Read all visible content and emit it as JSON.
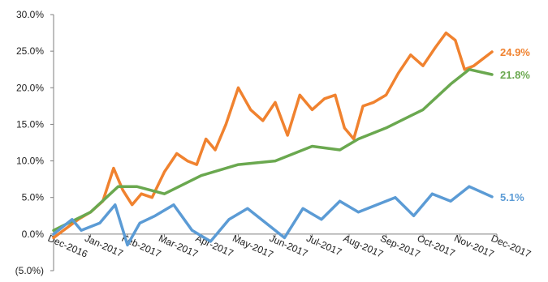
{
  "chart_data": {
    "type": "line",
    "title": "",
    "xlabel": "",
    "ylabel": "",
    "ylim": [
      -5,
      30
    ],
    "yticks": [
      "30.0%",
      "25.0%",
      "20.0%",
      "15.0%",
      "10.0%",
      "5.0%",
      "0.0%",
      "(5.0%)"
    ],
    "ytick_values": [
      30,
      25,
      20,
      15,
      10,
      5,
      0,
      -5
    ],
    "xticks": [
      "Dec-2016",
      "Jan-2017",
      "Feb-2017",
      "Mar-2017",
      "Apr-2017",
      "May-2017",
      "Jun-2017",
      "Jul-2017",
      "Aug-2017",
      "Sep-2017",
      "Oct-2017",
      "Nov-2017",
      "Dec-2017"
    ],
    "grid": false,
    "legend": "none",
    "series": [
      {
        "color": "#f0822f",
        "end_label": "24.9%",
        "x": [
          "Dec-2016",
          "Jan-2017",
          "Jan-2017",
          "Jan-2017",
          "Feb-2017",
          "Feb-2017",
          "Feb-2017",
          "Feb-2017",
          "Mar-2017",
          "Mar-2017",
          "Mar-2017",
          "Apr-2017",
          "Apr-2017",
          "Apr-2017",
          "Apr-2017",
          "May-2017",
          "May-2017",
          "May-2017",
          "Jun-2017",
          "Jun-2017",
          "Jun-2017",
          "Jul-2017",
          "Jul-2017",
          "Jul-2017",
          "Aug-2017",
          "Aug-2017",
          "Aug-2017",
          "Aug-2017",
          "Sep-2017",
          "Sep-2017",
          "Sep-2017",
          "Oct-2017",
          "Oct-2017",
          "Oct-2017",
          "Nov-2017",
          "Nov-2017",
          "Nov-2017",
          "Nov-2017",
          "Dec-2017"
        ],
        "values": [
          -0.5,
          2.0,
          3.0,
          4.5,
          9.0,
          6.0,
          4.0,
          5.5,
          5.0,
          8.5,
          11.0,
          10.0,
          9.5,
          13.0,
          11.5,
          15.0,
          20.0,
          17.0,
          15.5,
          18.0,
          13.5,
          19.0,
          17.0,
          18.5,
          19.0,
          14.5,
          13.0,
          17.5,
          18.0,
          19.0,
          22.0,
          24.5,
          23.0,
          25.5,
          27.5,
          26.5,
          22.5,
          23.0,
          24.9
        ]
      },
      {
        "color": "#6aa84f",
        "end_label": "21.8%",
        "x": [
          "Dec-2016",
          "Jan-2017",
          "Feb-2017",
          "Feb-2017",
          "Mar-2017",
          "Apr-2017",
          "May-2017",
          "Jun-2017",
          "Jul-2017",
          "Aug-2017",
          "Aug-2017",
          "Sep-2017",
          "Oct-2017",
          "Nov-2017",
          "Nov-2017",
          "Dec-2017"
        ],
        "values": [
          0.5,
          3.0,
          6.5,
          6.5,
          5.5,
          8.0,
          9.5,
          10.0,
          12.0,
          11.5,
          13.0,
          14.5,
          17.0,
          20.5,
          22.5,
          21.8
        ]
      },
      {
        "color": "#5b9bd5",
        "end_label": "5.1%",
        "x": [
          "Dec-2016",
          "Dec-2016",
          "Jan-2017",
          "Jan-2017",
          "Feb-2017",
          "Feb-2017",
          "Feb-2017",
          "Mar-2017",
          "Mar-2017",
          "Apr-2017",
          "Apr-2017",
          "May-2017",
          "May-2017",
          "Jun-2017",
          "Jun-2017",
          "Jul-2017",
          "Jul-2017",
          "Aug-2017",
          "Aug-2017",
          "Sep-2017",
          "Sep-2017",
          "Oct-2017",
          "Oct-2017",
          "Nov-2017",
          "Nov-2017",
          "Dec-2017"
        ],
        "values": [
          0.0,
          2.0,
          0.5,
          1.5,
          4.0,
          -1.5,
          1.5,
          2.5,
          4.0,
          0.5,
          -1.0,
          2.0,
          3.5,
          1.5,
          -0.5,
          3.5,
          2.0,
          4.5,
          3.0,
          4.0,
          5.0,
          2.5,
          5.5,
          4.5,
          6.5,
          5.1
        ]
      }
    ]
  }
}
